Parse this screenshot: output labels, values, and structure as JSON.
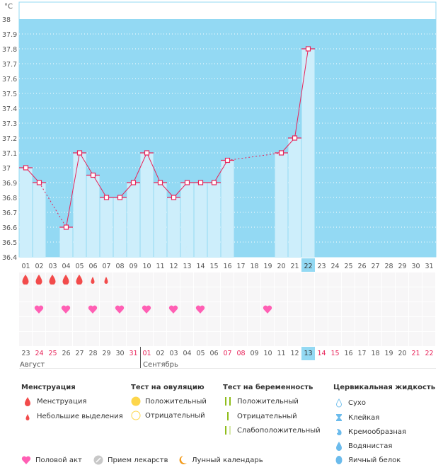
{
  "chart_data": {
    "type": "line",
    "ylabel": "°C",
    "ylim": [
      36.4,
      38.0
    ],
    "yticks": [
      "36.4",
      "36.5",
      "36.6",
      "36.7",
      "36.8",
      "36.9",
      "37",
      "37.1",
      "37.2",
      "37.3",
      "37.4",
      "37.5",
      "37.6",
      "37.7",
      "37.8",
      "37.9",
      "38"
    ],
    "x": [
      "01",
      "02",
      "03",
      "04",
      "05",
      "06",
      "07",
      "08",
      "09",
      "10",
      "11",
      "12",
      "13",
      "14",
      "15",
      "16",
      "17",
      "18",
      "19",
      "20",
      "21",
      "22",
      "23",
      "24",
      "25",
      "26",
      "27",
      "28",
      "29",
      "30",
      "31"
    ],
    "values": [
      37.0,
      36.9,
      null,
      36.6,
      37.1,
      36.95,
      36.8,
      36.8,
      36.9,
      37.1,
      36.9,
      36.8,
      36.9,
      36.9,
      36.9,
      37.05,
      null,
      null,
      null,
      37.1,
      37.2,
      37.8,
      null,
      null,
      null,
      null,
      null,
      null,
      null,
      null,
      null
    ],
    "highlight_day": "22",
    "moon_day": "13",
    "colors": {
      "bg": "#93d9f3",
      "bar": "#cdeefb",
      "line": "#e8245a"
    }
  },
  "symbols": {
    "menstruation": [
      "heavy",
      "heavy",
      "heavy",
      "heavy",
      "heavy",
      "light",
      "light"
    ],
    "intercourse_days": [
      2,
      4,
      6,
      8,
      10,
      12,
      14,
      19
    ]
  },
  "dates": [
    "23",
    "24",
    "25",
    "26",
    "27",
    "28",
    "29",
    "30",
    "31",
    "01",
    "02",
    "03",
    "04",
    "05",
    "06",
    "07",
    "08",
    "09",
    "10",
    "11",
    "12",
    "13",
    "14",
    "15",
    "16",
    "17",
    "18",
    "19",
    "20",
    "21",
    "22"
  ],
  "red_dates": [
    1,
    2,
    8,
    9,
    15,
    16,
    22,
    23,
    29,
    30
  ],
  "months": {
    "aug": "Август",
    "sep": "Сентябрь"
  },
  "legend": {
    "menstruation": {
      "title": "Менструация",
      "items": [
        "Менструация",
        "Небольшие выделения"
      ]
    },
    "ovulation": {
      "title": "Тест на овуляцию",
      "items": [
        "Положительный",
        "Отрицательный"
      ]
    },
    "pregnancy": {
      "title": "Тест на беременность",
      "items": [
        "Положительный",
        "Отрицательный",
        "Слабоположительный"
      ]
    },
    "cervical": {
      "title": "Цервикальная жидкость",
      "items": [
        "Сухо",
        "Клейкая",
        "Кремообразная",
        "Водянистая",
        "Яичный белок"
      ]
    },
    "other": [
      "Половой акт",
      "Прием лекарств",
      "Лунный календарь"
    ]
  }
}
